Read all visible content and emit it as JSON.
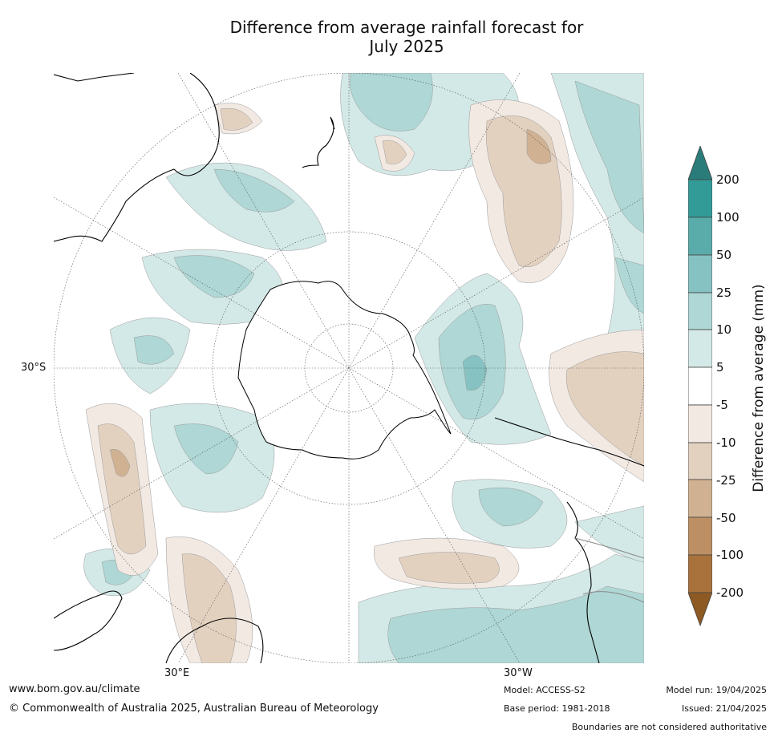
{
  "title": {
    "line1": "Difference from average rainfall forecast for",
    "line2": "July 2025"
  },
  "map": {
    "projection": "south-polar-stereographic",
    "graticule_labels": {
      "lat_30s": "30°S",
      "lon_30e": "30°E",
      "lon_30w": "30°W"
    }
  },
  "colorbar": {
    "label": "Difference from average (mm)",
    "ticks": [
      "200",
      "100",
      "50",
      "25",
      "10",
      "5",
      "-5",
      "-10",
      "-25",
      "-50",
      "-100",
      "-200"
    ],
    "colors": {
      "over_200": "#2a7c7a",
      "100_200": "#329b98",
      "50_100": "#5aacab",
      "25_50": "#86c2c2",
      "10_25": "#aed7d5",
      "5_10": "#d3e9e7",
      "neutral": "#ffffff",
      "n5_n10": "#f2e9e3",
      "n10_n25": "#e3d1c0",
      "n25_n50": "#d0b292",
      "n50_n100": "#bd8f64",
      "n100_n200": "#a9723d",
      "under_n200": "#8d5a24"
    }
  },
  "footer": {
    "url": "www.bom.gov.au/climate",
    "copyright": "© Commonwealth of Australia 2025, Australian Bureau of Meteorology",
    "model": "Model: ACCESS-S2",
    "base_period": "Base period: 1981-2018",
    "model_run": "Model run: 19/04/2025",
    "issued": "Issued: 21/04/2025",
    "disclaimer": "Boundaries are not considered authoritative"
  }
}
